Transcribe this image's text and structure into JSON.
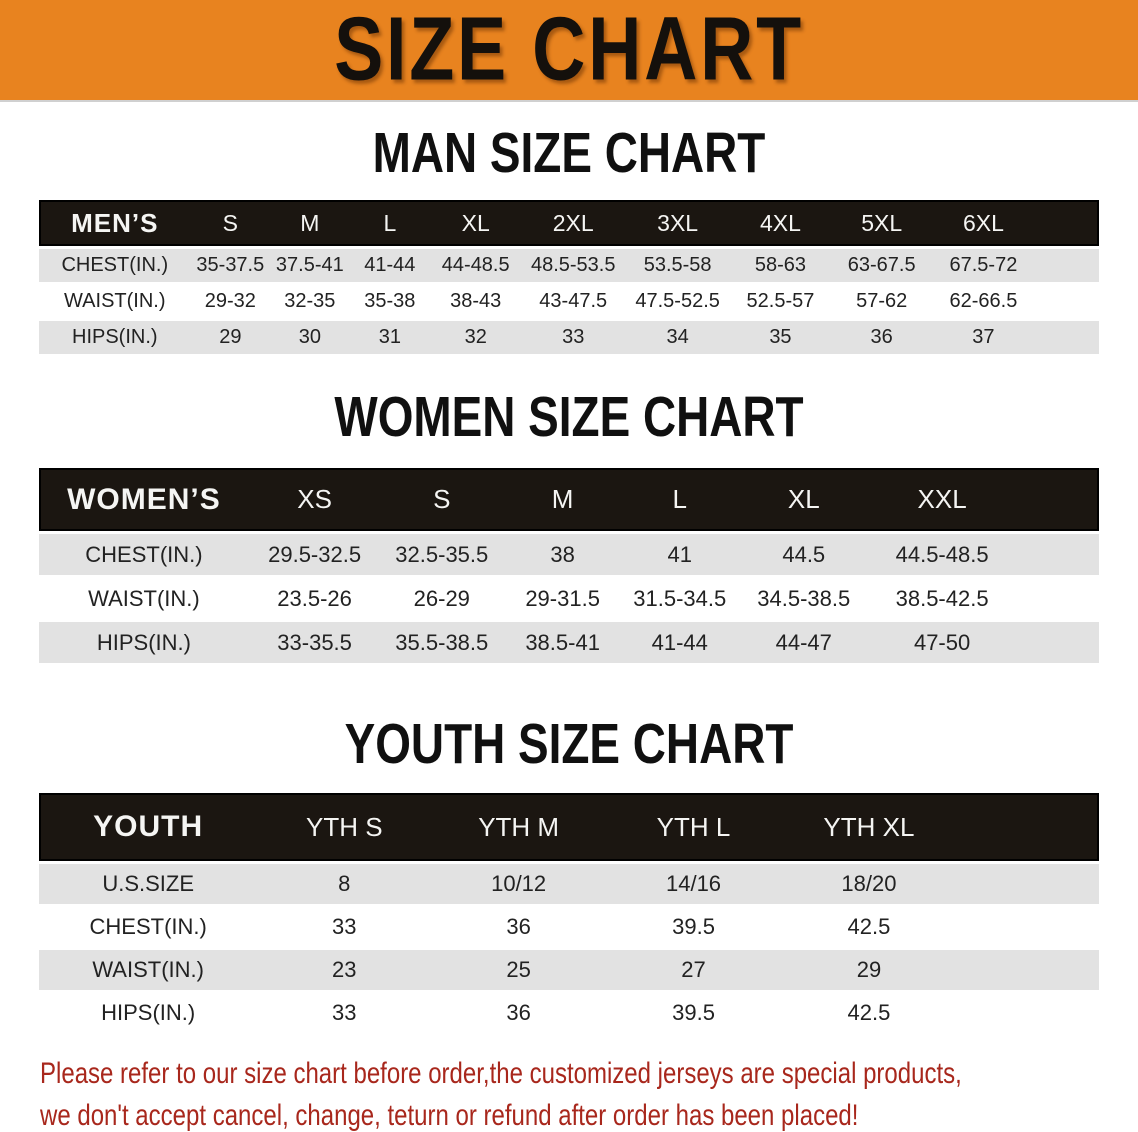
{
  "banner": {
    "title": "SIZE CHART"
  },
  "colors": {
    "banner_bg": "#E8831F",
    "header_bar": "#1B1611",
    "stripe_gray": "#E2E2E2",
    "footer_red": "#A8271C"
  },
  "sections": [
    {
      "heading": "MAN SIZE CHART",
      "table": {
        "corner": "MEN’S",
        "columns": [
          "S",
          "M",
          "L",
          "XL",
          "2XL",
          "3XL",
          "4XL",
          "5XL",
          "6XL"
        ],
        "rows": [
          {
            "label": "CHEST(IN.)",
            "values": [
              "35-37.5",
              "37.5-41",
              "41-44",
              "44-48.5",
              "48.5-53.5",
              "53.5-58",
              "58-63",
              "63-67.5",
              "67.5-72"
            ]
          },
          {
            "label": "WAIST(IN.)",
            "values": [
              "29-32",
              "32-35",
              "35-38",
              "38-43",
              "43-47.5",
              "47.5-52.5",
              "52.5-57",
              "57-62",
              "62-66.5"
            ]
          },
          {
            "label": "HIPS(IN.)",
            "values": [
              "29",
              "30",
              "31",
              "32",
              "33",
              "34",
              "35",
              "36",
              "37"
            ]
          }
        ]
      }
    },
    {
      "heading": "WOMEN SIZE CHART",
      "table": {
        "corner": "WOMEN’S",
        "columns": [
          "XS",
          "S",
          "M",
          "L",
          "XL",
          "XXL"
        ],
        "rows": [
          {
            "label": "CHEST(IN.)",
            "values": [
              "29.5-32.5",
              "32.5-35.5",
              "38",
              "41",
              "44.5",
              "44.5-48.5"
            ]
          },
          {
            "label": "WAIST(IN.)",
            "values": [
              "23.5-26",
              "26-29",
              "29-31.5",
              "31.5-34.5",
              "34.5-38.5",
              "38.5-42.5"
            ]
          },
          {
            "label": "HIPS(IN.)",
            "values": [
              "33-35.5",
              "35.5-38.5",
              "38.5-41",
              "41-44",
              "44-47",
              "47-50"
            ]
          }
        ]
      }
    },
    {
      "heading": "YOUTH SIZE CHART",
      "table": {
        "corner": "YOUTH",
        "columns": [
          "YTH S",
          "YTH M",
          "YTH L",
          "YTH XL"
        ],
        "rows": [
          {
            "label": "U.S.SIZE",
            "values": [
              "8",
              "10/12",
              "14/16",
              "18/20"
            ]
          },
          {
            "label": "CHEST(IN.)",
            "values": [
              "33",
              "36",
              "39.5",
              "42.5"
            ]
          },
          {
            "label": "WAIST(IN.)",
            "values": [
              "23",
              "25",
              "27",
              "29"
            ]
          },
          {
            "label": "HIPS(IN.)",
            "values": [
              "33",
              "36",
              "39.5",
              "42.5"
            ]
          }
        ]
      }
    }
  ],
  "footer": {
    "line1": "Please refer to our size chart before order,the customized jerseys are special products,",
    "line2": "we don't accept cancel, change, teturn or refund after order has been placed!"
  }
}
